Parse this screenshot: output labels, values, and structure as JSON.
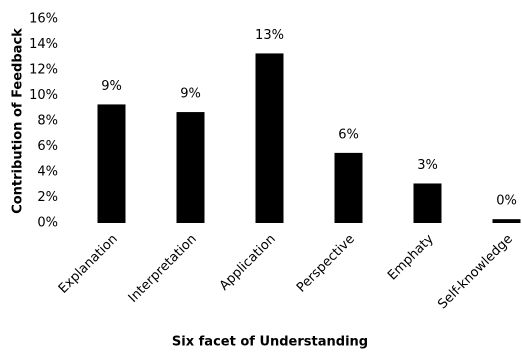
{
  "chart_data": {
    "type": "bar",
    "xlabel": "Six facet of Understanding",
    "ylabel": "Contribution of Feedback",
    "categories": [
      "Explanation",
      "Interpretation",
      "Application",
      "Perspective",
      "Emphaty",
      "Self-knowledge"
    ],
    "values": [
      9.3,
      8.7,
      13.3,
      5.5,
      3.1,
      0.3
    ],
    "value_labels": [
      "9%",
      "9%",
      "13%",
      "6%",
      "3%",
      "0%"
    ],
    "color": "#000000",
    "ylim": [
      0,
      16
    ],
    "yticks": [
      {
        "value": 0,
        "label": "0%"
      },
      {
        "value": 2,
        "label": "2%"
      },
      {
        "value": 4,
        "label": "4%"
      },
      {
        "value": 6,
        "label": "6%"
      },
      {
        "value": 8,
        "label": "8%"
      },
      {
        "value": 10,
        "label": "10%"
      },
      {
        "value": 12,
        "label": "12%"
      },
      {
        "value": 14,
        "label": "14%"
      },
      {
        "value": 16,
        "label": "16%"
      }
    ],
    "grid": false
  }
}
